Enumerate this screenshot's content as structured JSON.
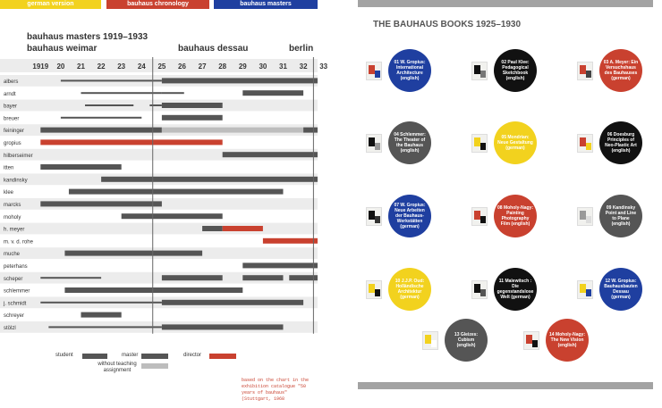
{
  "nav": {
    "german": "german version",
    "chronology": "bauhaus chronology",
    "masters": "bauhaus masters"
  },
  "chart_header": {
    "title": "bauhaus masters 1919–1933",
    "weimar": "bauhaus weimar",
    "dessau": "bauhaus dessau",
    "berlin": "berlin"
  },
  "chart_data": {
    "type": "bar",
    "years": [
      "1919",
      "20",
      "21",
      "22",
      "23",
      "24",
      "25",
      "26",
      "27",
      "28",
      "29",
      "30",
      "31",
      "32",
      "33"
    ],
    "masters": [
      {
        "name": "albers",
        "segments": [
          {
            "start": 1920.0,
            "end": 1925.0,
            "role": "student"
          },
          {
            "start": 1925.0,
            "end": 1933.5,
            "role": "master"
          }
        ]
      },
      {
        "name": "arndt",
        "segments": [
          {
            "start": 1921.0,
            "end": 1925.0,
            "role": "student"
          },
          {
            "start": 1925.0,
            "end": 1926.1,
            "role": "student"
          },
          {
            "start": 1929.0,
            "end": 1932.0,
            "role": "master"
          }
        ]
      },
      {
        "name": "bayer",
        "segments": [
          {
            "start": 1921.2,
            "end": 1923.6,
            "role": "student"
          },
          {
            "start": 1924.4,
            "end": 1925.0,
            "role": "student"
          },
          {
            "start": 1925.0,
            "end": 1928.0,
            "role": "master"
          }
        ]
      },
      {
        "name": "breuer",
        "segments": [
          {
            "start": 1920.0,
            "end": 1924.0,
            "role": "student"
          },
          {
            "start": 1925.0,
            "end": 1928.0,
            "role": "master"
          }
        ]
      },
      {
        "name": "feininger",
        "segments": [
          {
            "start": 1919.0,
            "end": 1925.0,
            "role": "master"
          },
          {
            "start": 1925.0,
            "end": 1932.0,
            "role": "without teaching assignment"
          },
          {
            "start": 1932.0,
            "end": 1933.5,
            "role": "master"
          }
        ]
      },
      {
        "name": "gropius",
        "segments": [
          {
            "start": 1919.0,
            "end": 1928.0,
            "role": "director"
          }
        ]
      },
      {
        "name": "hilberseimer",
        "segments": [
          {
            "start": 1928.0,
            "end": 1933.5,
            "role": "master"
          }
        ]
      },
      {
        "name": "itten",
        "segments": [
          {
            "start": 1919.0,
            "end": 1923.0,
            "role": "master"
          }
        ]
      },
      {
        "name": "kandinsky",
        "segments": [
          {
            "start": 1922.0,
            "end": 1933.5,
            "role": "master"
          }
        ]
      },
      {
        "name": "klee",
        "segments": [
          {
            "start": 1920.4,
            "end": 1931.0,
            "role": "master"
          }
        ]
      },
      {
        "name": "marcks",
        "segments": [
          {
            "start": 1919.0,
            "end": 1925.0,
            "role": "master"
          }
        ]
      },
      {
        "name": "moholy",
        "segments": [
          {
            "start": 1923.0,
            "end": 1928.0,
            "role": "master"
          }
        ]
      },
      {
        "name": "h. meyer",
        "segments": [
          {
            "start": 1927.0,
            "end": 1928.0,
            "role": "master"
          },
          {
            "start": 1928.0,
            "end": 1930.0,
            "role": "director"
          }
        ]
      },
      {
        "name": "m. v. d. rohe",
        "segments": [
          {
            "start": 1930.0,
            "end": 1933.5,
            "role": "director"
          }
        ]
      },
      {
        "name": "muche",
        "segments": [
          {
            "start": 1920.2,
            "end": 1927.0,
            "role": "master"
          }
        ]
      },
      {
        "name": "peterhans",
        "segments": [
          {
            "start": 1929.0,
            "end": 1933.5,
            "role": "master"
          }
        ]
      },
      {
        "name": "scheper",
        "segments": [
          {
            "start": 1919.0,
            "end": 1922.0,
            "role": "student"
          },
          {
            "start": 1925.0,
            "end": 1928.0,
            "role": "master"
          },
          {
            "start": 1929.0,
            "end": 1931.0,
            "role": "master"
          },
          {
            "start": 1931.3,
            "end": 1933.5,
            "role": "master"
          }
        ]
      },
      {
        "name": "schlemmer",
        "segments": [
          {
            "start": 1920.2,
            "end": 1929.0,
            "role": "master"
          }
        ]
      },
      {
        "name": "j. schmidt",
        "segments": [
          {
            "start": 1919.0,
            "end": 1925.0,
            "role": "student"
          },
          {
            "start": 1925.0,
            "end": 1932.0,
            "role": "master"
          }
        ]
      },
      {
        "name": "schreyer",
        "segments": [
          {
            "start": 1921.0,
            "end": 1923.0,
            "role": "master"
          }
        ]
      },
      {
        "name": "stölzl",
        "segments": [
          {
            "start": 1919.4,
            "end": 1925.0,
            "role": "student"
          },
          {
            "start": 1925.0,
            "end": 1931.0,
            "role": "master"
          }
        ]
      }
    ],
    "legend": [
      {
        "label": "student",
        "role": "student"
      },
      {
        "label": "master",
        "role": "master"
      },
      {
        "label": "without teaching assignment",
        "role": "without teaching assignment"
      },
      {
        "label": "director",
        "role": "director"
      }
    ],
    "colors": {
      "student": "#555555",
      "master": "#555555",
      "without teaching assignment": "#bdbdbd",
      "director": "#c9412f",
      "row_band": "#ececec"
    }
  },
  "legend_labels": {
    "student": "student",
    "master": "master",
    "without": "without teaching assignment",
    "director": "director"
  },
  "source_note": "based on the chart in the exhibition catalogue \"50 years of bauhaus\" (Stuttgart, 1968",
  "books_title": "THE BAUHAUS BOOKS 1925–1930",
  "books": [
    {
      "label": "01 W. Gropius: International Architecture (english)",
      "color": "#1f3fa0",
      "dark_text": false
    },
    {
      "label": "02 Paul Klee: Pedagogical Sketchbook (english)",
      "color": "#111111",
      "dark_text": false
    },
    {
      "label": "03 A. Meyer: Ein Versuchshaus des Bauhauses (german)",
      "color": "#c9412f",
      "dark_text": false
    },
    {
      "label": "04 Schlemmer: The Theater of the Bauhaus (english)",
      "color": "#555555",
      "dark_text": false
    },
    {
      "label": "05 Mondrian: Neue Gestaltung (german)",
      "color": "#f2d21e",
      "dark_text": false
    },
    {
      "label": "06 Doesburg Principles of Neo-Plastic Art (english)",
      "color": "#111111",
      "dark_text": false
    },
    {
      "label": "07 W. Gropius: Neue Arbeiten der Bauhaus-Werkstätten (german)",
      "color": "#1f3fa0",
      "dark_text": false
    },
    {
      "label": "08 Moholy-Nagy: Painting Photography Film (english)",
      "color": "#c9412f",
      "dark_text": false
    },
    {
      "label": "09 Kandinsky Point and Line to Plane (english)",
      "color": "#555555",
      "dark_text": false
    },
    {
      "label": "10 J.J.P. Oud: Holländische Architektur (german)",
      "color": "#f2d21e",
      "dark_text": false
    },
    {
      "label": "11 Malewitsch : Die gegenstandslose Welt (german)",
      "color": "#111111",
      "dark_text": false
    },
    {
      "label": "12 W. Gropius: Bauhausbauten Dessau (german)",
      "color": "#1f3fa0",
      "dark_text": false
    },
    {
      "label": "13 Gleizes: Cubism (english)",
      "color": "#555555",
      "dark_text": false
    },
    {
      "label": "14 Moholy-Nagy: The New Vision (english)",
      "color": "#c9412f",
      "dark_text": false
    }
  ]
}
